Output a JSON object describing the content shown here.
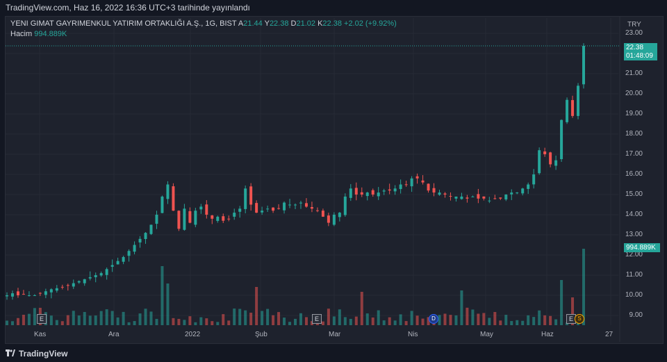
{
  "header": {
    "published": "TradingView.com, Haz 16, 2022 16:36 UTC+3 tarihinde yayınlandı"
  },
  "legend": {
    "symbol": "YENI GIMAT GAYRIMENKUL YATIRIM ORTAKLIĞI A.Ş., 1G, BIST",
    "open_label": "A",
    "open": "21.44",
    "high_label": "Y",
    "high": "22.38",
    "low_label": "D",
    "low": "21.02",
    "close_label": "K",
    "close": "22.38",
    "change": "+2.02 (+9.92%)",
    "volume_label": "Hacim",
    "volume": "994.889K"
  },
  "axis": {
    "currency": "TRY",
    "price_ticks": [
      "23.00",
      "22.00",
      "21.00",
      "20.00",
      "19.00",
      "18.00",
      "17.00",
      "16.00",
      "15.00",
      "14.00",
      "13.00",
      "12.00",
      "11.00",
      "10.00",
      "9.00"
    ],
    "time_ticks": [
      "Kas",
      "Ara",
      "2022",
      "Şub",
      "Mar",
      "Nis",
      "May",
      "Haz",
      "27"
    ]
  },
  "price_label": {
    "price": "22.38",
    "countdown": "01:48:09"
  },
  "volume_label": "994.889K",
  "events": {
    "earnings": "E",
    "dividend": "D",
    "split": "S"
  },
  "footer": {
    "brand": "TradingView"
  },
  "colors": {
    "up": "#26a69a",
    "down": "#ef5350",
    "background": "#1e222d"
  },
  "chart_data": {
    "type": "candlestick",
    "ylim": [
      8.6,
      23.2
    ],
    "series_close": [
      10.0,
      10.1,
      10.0,
      10.05,
      10.0,
      10.0,
      10.1,
      10.2,
      10.3,
      10.35,
      10.4,
      10.5,
      10.6,
      10.7,
      10.8,
      10.9,
      11.0,
      11.1,
      11.3,
      11.5,
      11.7,
      11.9,
      12.2,
      12.5,
      12.8,
      13.1,
      13.5,
      14.0,
      14.9,
      15.5,
      14.2,
      13.3,
      14.3,
      13.6,
      14.2,
      14.4,
      14.0,
      13.8,
      13.9,
      13.7,
      13.8,
      14.1,
      14.3,
      15.3,
      14.5,
      14.1,
      14.2,
      14.3,
      14.2,
      14.3,
      14.6,
      14.5,
      14.5,
      14.6,
      14.4,
      14.3,
      14.2,
      13.9,
      13.6,
      14.0,
      14.1,
      14.9,
      15.3,
      15.0,
      15.0,
      15.1,
      15.0,
      15.1,
      15.2,
      15.2,
      15.3,
      15.5,
      15.5,
      15.8,
      15.8,
      15.6,
      15.2,
      15.1,
      15.1,
      15.0,
      14.9,
      14.9,
      14.9,
      14.8,
      14.9,
      14.8,
      14.8,
      14.7,
      14.8,
      14.8,
      15.0,
      15.1,
      15.1,
      15.3,
      15.5,
      16.0,
      17.2,
      17.0,
      16.5,
      16.7,
      18.7,
      19.7,
      18.9,
      20.4,
      22.38
    ]
  }
}
